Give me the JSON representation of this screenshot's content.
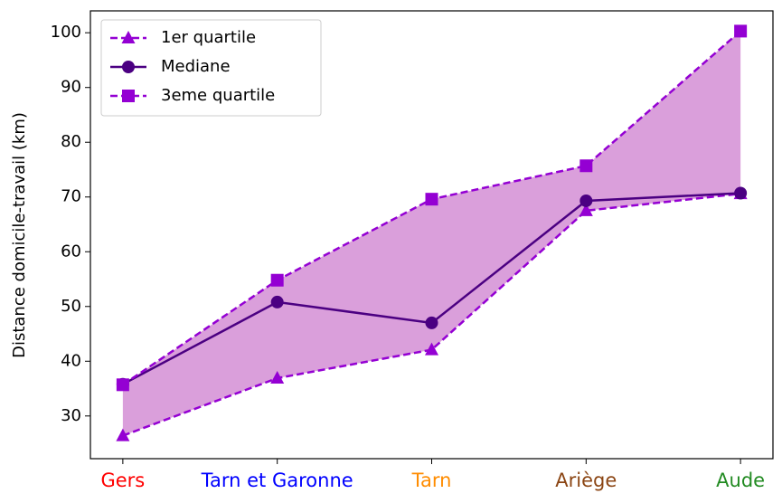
{
  "chart_data": {
    "type": "line",
    "ylabel": "Distance domicile-travail (km)",
    "categories": [
      "Gers",
      "Tarn et Garonne",
      "Tarn",
      "Ariège",
      "Aude"
    ],
    "category_colors": [
      "#ff0000",
      "#0000ff",
      "#ff8c00",
      "#8b4513",
      "#228b22"
    ],
    "series": [
      {
        "name": "1er quartile",
        "color": "#9400d3",
        "linestyle": "dashed",
        "marker": "triangle",
        "values": [
          26.4,
          36.9,
          42.1,
          67.5,
          70.6
        ]
      },
      {
        "name": "Mediane",
        "color": "#4b0082",
        "linestyle": "solid",
        "marker": "circle",
        "values": [
          35.8,
          50.8,
          47.0,
          69.3,
          70.7
        ]
      },
      {
        "name": "3eme quartile",
        "color": "#9400d3",
        "linestyle": "dashed",
        "marker": "square",
        "values": [
          35.7,
          54.8,
          69.6,
          75.7,
          100.3
        ]
      }
    ],
    "fill_between": [
      0,
      2
    ],
    "fill_color": "#da9fdb",
    "ylim": [
      22.2,
      104
    ],
    "yticks": [
      30,
      40,
      50,
      60,
      70,
      80,
      90,
      100
    ],
    "legend": "upper left"
  }
}
